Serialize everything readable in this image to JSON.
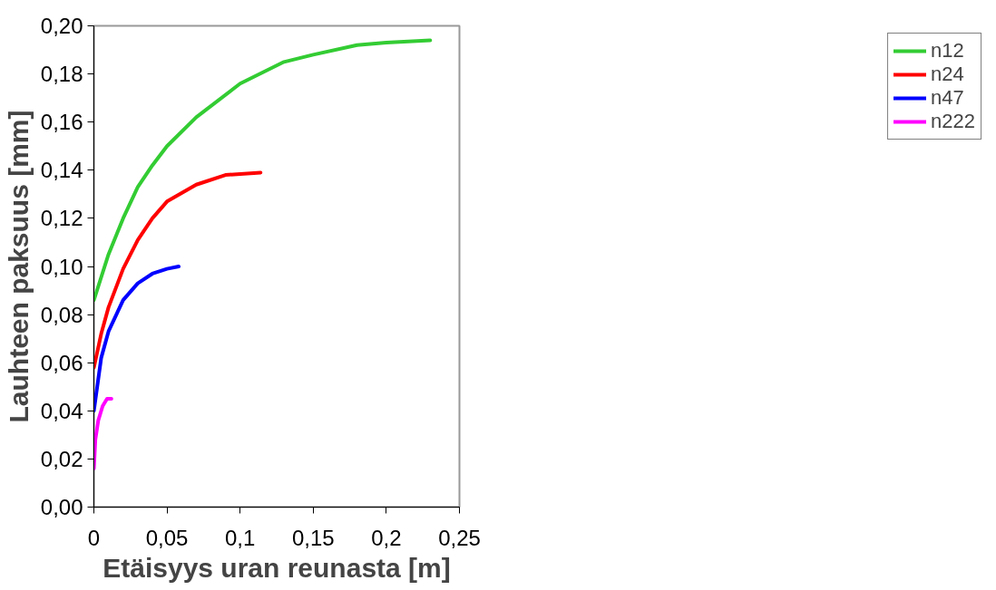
{
  "chart_data": {
    "type": "line",
    "xlabel": "Etäisyys uran reunasta [m]",
    "ylabel": "Lauhteen paksuus [mm]",
    "xlim": [
      0,
      0.25
    ],
    "xticks": [
      {
        "value": 0,
        "label": "0"
      },
      {
        "value": 0.05,
        "label": "0,05"
      },
      {
        "value": 0.1,
        "label": "0,1"
      },
      {
        "value": 0.15,
        "label": "0,15"
      },
      {
        "value": 0.2,
        "label": "0,2"
      },
      {
        "value": 0.25,
        "label": "0,25"
      }
    ],
    "ylim": [
      0,
      0.2
    ],
    "yticks": [
      {
        "value": 0,
        "label": "0,00"
      },
      {
        "value": 0.02,
        "label": "0,02"
      },
      {
        "value": 0.04,
        "label": "0,04"
      },
      {
        "value": 0.06,
        "label": "0,06"
      },
      {
        "value": 0.08,
        "label": "0,08"
      },
      {
        "value": 0.1,
        "label": "0,10"
      },
      {
        "value": 0.12,
        "label": "0,12"
      },
      {
        "value": 0.14,
        "label": "0,14"
      },
      {
        "value": 0.16,
        "label": "0,16"
      },
      {
        "value": 0.18,
        "label": "0,18"
      },
      {
        "value": 0.2,
        "label": "0,20"
      }
    ],
    "grid": false,
    "legend": "right",
    "marker": "none",
    "line_style": "solid",
    "series": [
      {
        "name": "n12",
        "color": "#33cc33",
        "x": [
          0,
          0.01,
          0.02,
          0.03,
          0.04,
          0.05,
          0.07,
          0.1,
          0.13,
          0.15,
          0.18,
          0.2,
          0.23
        ],
        "values": [
          0.086,
          0.105,
          0.12,
          0.133,
          0.142,
          0.15,
          0.162,
          0.176,
          0.185,
          0.188,
          0.192,
          0.193,
          0.194
        ]
      },
      {
        "name": "n24",
        "color": "#ff0000",
        "x": [
          0,
          0.005,
          0.01,
          0.02,
          0.03,
          0.04,
          0.05,
          0.07,
          0.09,
          0.114
        ],
        "values": [
          0.058,
          0.072,
          0.083,
          0.099,
          0.111,
          0.12,
          0.127,
          0.134,
          0.138,
          0.139
        ]
      },
      {
        "name": "n47",
        "color": "#0000ff",
        "x": [
          0,
          0.005,
          0.01,
          0.02,
          0.03,
          0.04,
          0.05,
          0.058
        ],
        "values": [
          0.04,
          0.062,
          0.073,
          0.086,
          0.093,
          0.097,
          0.099,
          0.1
        ]
      },
      {
        "name": "n222",
        "color": "#ff00ff",
        "x": [
          0,
          0.001,
          0.003,
          0.006,
          0.009,
          0.012
        ],
        "values": [
          0.016,
          0.028,
          0.036,
          0.042,
          0.045,
          0.045
        ]
      }
    ]
  }
}
